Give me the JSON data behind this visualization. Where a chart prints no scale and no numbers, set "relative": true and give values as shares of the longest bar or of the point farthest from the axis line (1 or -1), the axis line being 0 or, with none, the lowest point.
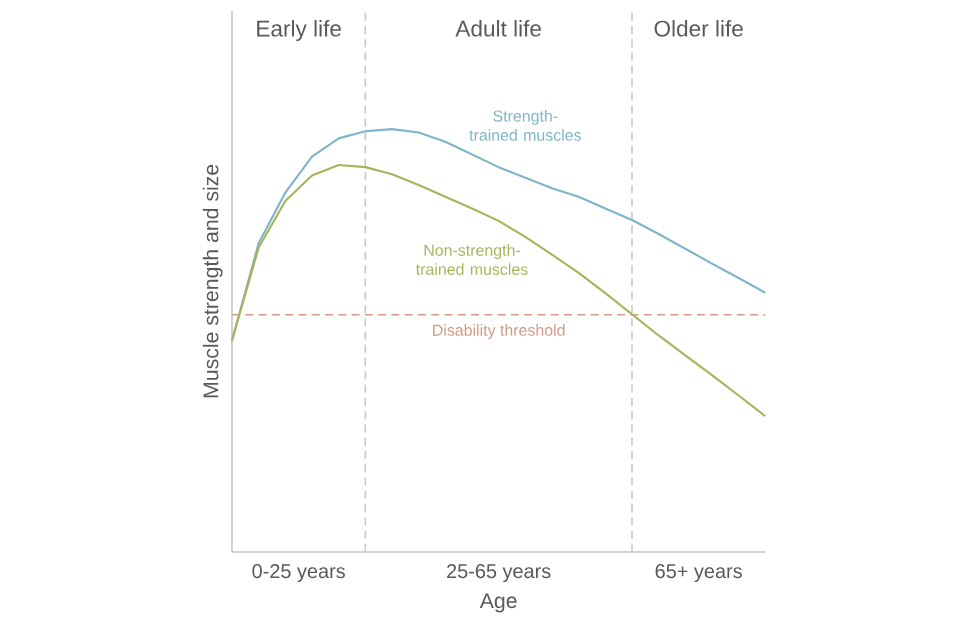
{
  "chart_data": {
    "type": "line",
    "relative": true,
    "xlabel": "Age",
    "ylabel": "Muscle strength and size",
    "categories": [
      null,
      null,
      null,
      null,
      null,
      null,
      null,
      null,
      null,
      null,
      null,
      null,
      null,
      null,
      null,
      null,
      null,
      null,
      null,
      null,
      null
    ],
    "series": [
      {
        "name": "Strength-trained muscles",
        "color": "#7fb5c8",
        "values": [
          0.5,
          0.73,
          0.85,
          0.935,
          0.978,
          0.995,
          1.0,
          0.992,
          0.97,
          0.94,
          0.91,
          0.885,
          0.86,
          0.84,
          0.812,
          0.785,
          0.752,
          0.717,
          0.682,
          0.648,
          0.613
        ]
      },
      {
        "name": "Non-strength-trained muscles",
        "color": "#a9b35c",
        "values": [
          0.5,
          0.72,
          0.83,
          0.89,
          0.915,
          0.91,
          0.893,
          0.868,
          0.84,
          0.812,
          0.783,
          0.745,
          0.703,
          0.66,
          0.612,
          0.562,
          0.512,
          0.465,
          0.418,
          0.37,
          0.321
        ]
      }
    ],
    "ref_lines": [
      {
        "axis": "y",
        "value": 0.561,
        "label": "Disability threshold",
        "color": "#d49a86",
        "line_style": "dashed"
      }
    ],
    "annotations": [
      "Early life",
      "Adult life",
      "Older life",
      "0-25 years",
      "25-65 years",
      "65+ years"
    ],
    "marker": "none",
    "line_style": "solid"
  }
}
